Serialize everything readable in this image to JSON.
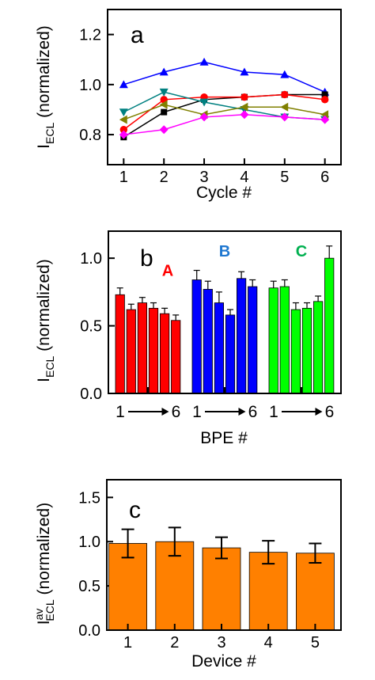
{
  "chart_data": [
    {
      "panel_letter": "a",
      "type": "line",
      "xlabel": "Cycle #",
      "ylabel_main": "I",
      "ylabel_sub": "ECL",
      "ylabel_rest": " (normalized)",
      "x": [
        1,
        2,
        3,
        4,
        5,
        6
      ],
      "xlim": [
        0.6,
        6.4
      ],
      "ylim": [
        0.68,
        1.3
      ],
      "xticks": [
        1,
        2,
        3,
        4,
        5,
        6
      ],
      "yticks": [
        0.8,
        1.0,
        1.2
      ],
      "ytick_labels": [
        "0.8",
        "1.0",
        "1.2"
      ],
      "series": [
        {
          "color": "#0000ff",
          "marker": "triangle-up",
          "values": [
            1.0,
            1.05,
            1.09,
            1.05,
            1.04,
            0.97
          ]
        },
        {
          "color": "#000000",
          "marker": "square",
          "values": [
            0.79,
            0.89,
            0.94,
            0.95,
            0.96,
            0.96
          ]
        },
        {
          "color": "#ff0000",
          "marker": "circle",
          "values": [
            0.82,
            0.94,
            0.95,
            0.95,
            0.96,
            0.94
          ]
        },
        {
          "color": "#008080",
          "marker": "triangle-down",
          "values": [
            0.89,
            0.97,
            0.93,
            0.9,
            0.87,
            0.86
          ]
        },
        {
          "color": "#808000",
          "marker": "triangle-left",
          "values": [
            0.86,
            0.92,
            0.88,
            0.91,
            0.91,
            0.88
          ]
        },
        {
          "color": "#ff00ff",
          "marker": "diamond",
          "values": [
            0.8,
            0.82,
            0.87,
            0.88,
            0.87,
            0.86
          ]
        }
      ]
    },
    {
      "panel_letter": "b",
      "type": "bar",
      "xlabel": "BPE #",
      "ylabel_main": "I",
      "ylabel_sub": "ECL",
      "ylabel_rest": " (normalized)",
      "ylim": [
        0,
        1.2
      ],
      "yticks": [
        0.0,
        0.5,
        1.0
      ],
      "ytick_labels": [
        "0.0",
        "0.5",
        "1.0"
      ],
      "x_range_start": "1",
      "x_range_end": "6",
      "groups": [
        {
          "name": "A",
          "color": "#ff0000",
          "label_color": "#ff0000",
          "values": [
            0.73,
            0.62,
            0.67,
            0.63,
            0.59,
            0.54
          ],
          "errors": [
            0.05,
            0.04,
            0.04,
            0.04,
            0.04,
            0.04
          ]
        },
        {
          "name": "B",
          "color": "#0000ff",
          "label_color": "#1f77d0",
          "values": [
            0.84,
            0.77,
            0.67,
            0.58,
            0.85,
            0.79
          ],
          "errors": [
            0.07,
            0.06,
            0.08,
            0.04,
            0.05,
            0.05
          ]
        },
        {
          "name": "C",
          "color": "#00ff00",
          "label_color": "#00b050",
          "values": [
            0.78,
            0.79,
            0.62,
            0.63,
            0.68,
            1.0
          ],
          "errors": [
            0.05,
            0.05,
            0.05,
            0.04,
            0.04,
            0.09
          ]
        }
      ]
    },
    {
      "panel_letter": "c",
      "type": "bar",
      "xlabel": "Device #",
      "ylabel_main": "I",
      "ylabel_sup": "av",
      "ylabel_sub": "ECL",
      "ylabel_rest": " (normalized)",
      "color": "#ff8000",
      "categories": [
        "1",
        "2",
        "3",
        "4",
        "5"
      ],
      "values": [
        0.98,
        1.0,
        0.93,
        0.88,
        0.87
      ],
      "errors": [
        0.16,
        0.16,
        0.12,
        0.13,
        0.11
      ],
      "ylim": [
        0,
        1.7
      ],
      "yticks": [
        0.0,
        0.5,
        1.0,
        1.5
      ],
      "ytick_labels": [
        "0.0",
        "0.5",
        "1.0",
        "1.5"
      ]
    }
  ]
}
